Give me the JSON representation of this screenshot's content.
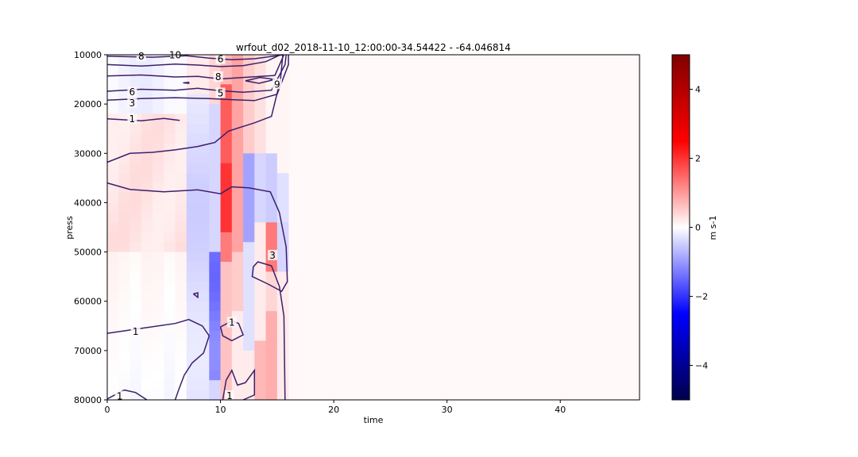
{
  "chart_data": {
    "type": "heatmap",
    "title": "wrfout_d02_2018-11-10_12:00:00-34.54422 - -64.046814",
    "xlabel": "time",
    "ylabel": "press",
    "xlim": [
      0,
      47
    ],
    "ylim": [
      80000,
      10000
    ],
    "xticks": [
      0,
      10,
      20,
      30,
      40
    ],
    "yticks": [
      10000,
      20000,
      30000,
      40000,
      50000,
      60000,
      70000,
      80000
    ],
    "colorbar": {
      "label": "m s-1",
      "range": [
        -5,
        5
      ],
      "ticks": [
        -4,
        -2,
        0,
        2,
        4
      ],
      "colormap": "seismic"
    },
    "grid": false,
    "data_time_range": [
      0,
      16
    ],
    "contour_labels": [
      {
        "text": "8",
        "time": 3.0,
        "press": 10300
      },
      {
        "text": "10",
        "time": 6.0,
        "press": 10100
      },
      {
        "text": "6",
        "time": 10.0,
        "press": 10900
      },
      {
        "text": "8",
        "time": 9.8,
        "press": 14500
      },
      {
        "text": "6",
        "time": 2.2,
        "press": 17600
      },
      {
        "text": "5",
        "time": 10.0,
        "press": 17800
      },
      {
        "text": "9",
        "time": 15.0,
        "press": 16000
      },
      {
        "text": "3",
        "time": 2.2,
        "press": 19800
      },
      {
        "text": "1",
        "time": 2.2,
        "press": 23000
      },
      {
        "text": "3",
        "time": 14.6,
        "press": 50700
      },
      {
        "text": "1",
        "time": 11.0,
        "press": 64300
      },
      {
        "text": "1",
        "time": 2.5,
        "press": 66200
      },
      {
        "text": "1",
        "time": 1.1,
        "press": 79300
      },
      {
        "text": "1",
        "time": 10.8,
        "press": 79200
      }
    ]
  }
}
